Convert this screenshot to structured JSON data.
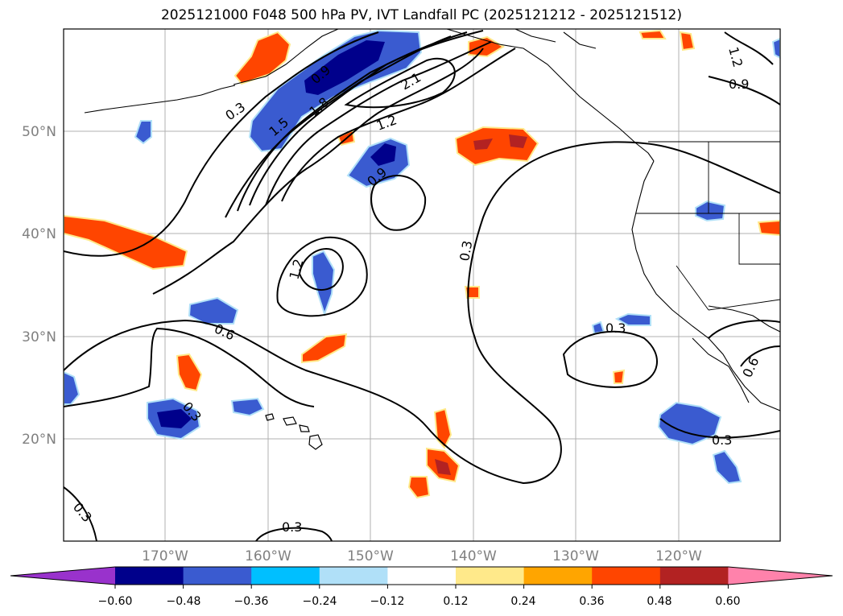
{
  "title": "2025121000 F048 500 hPa PV, IVT Landfall PC (2025121212 - 2025121512)",
  "axes": {
    "lat_labels": [
      "50°N",
      "40°N",
      "30°N",
      "20°N"
    ],
    "lon_labels": [
      "170°W",
      "160°W",
      "150°W",
      "140°W",
      "130°W",
      "120°W"
    ],
    "gridlines": true
  },
  "colorbar": {
    "tick_labels": [
      "−0.60",
      "−0.48",
      "−0.36",
      "−0.24",
      "−0.12",
      "0.12",
      "0.24",
      "0.36",
      "0.48",
      "0.60"
    ],
    "colors": [
      "#9932cc",
      "#00008b",
      "#3a5bd0",
      "#00bfff",
      "#b0e0f8",
      "#ffffff",
      "#ffe98a",
      "#ffa500",
      "#ff4500",
      "#b22222",
      "#ff82ab"
    ],
    "extend": "both"
  },
  "contour_labels": [
    "0.3",
    "0.9",
    "2.1",
    "1.5",
    "1.8",
    "1.2",
    "0.9",
    "1.2",
    "0.9",
    "0.6",
    "0.3",
    "0.3",
    "0.6",
    "0.3",
    "0.3",
    "0.3",
    "1.2",
    "0.3"
  ]
}
